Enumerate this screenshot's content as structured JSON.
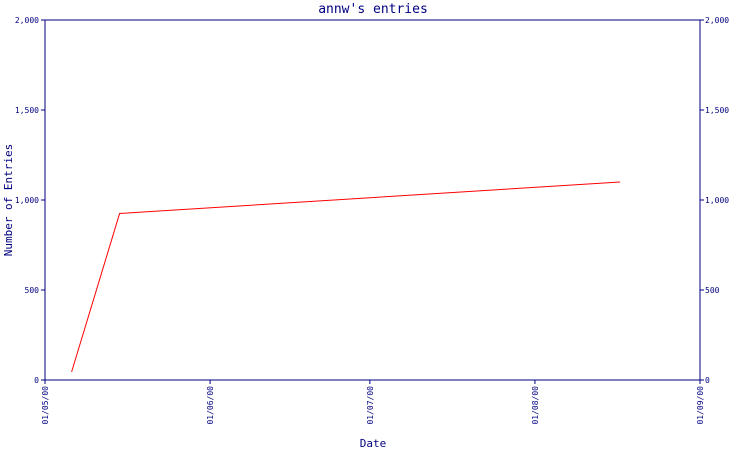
{
  "chart_data": {
    "type": "line",
    "title": "annw's entries",
    "xlabel": "Date",
    "ylabel": "Number of Entries",
    "ylim": [
      0,
      2000
    ],
    "xlim": [
      "2000-05-01",
      "2000-09-01"
    ],
    "y_ticks": [
      0,
      500,
      1000,
      1500,
      2000
    ],
    "y_tick_labels": [
      "0",
      "500",
      "1,000",
      "1,500",
      "2,000"
    ],
    "x_ticks": [
      "2000-05-01",
      "2000-06-01",
      "2000-07-01",
      "2000-08-01",
      "2000-09-01"
    ],
    "x_tick_labels": [
      "01/05/00",
      "01/06/00",
      "01/07/00",
      "01/08/00",
      "01/09/00"
    ],
    "grid": false,
    "right_axis": true,
    "series": [
      {
        "color": "#ff0000",
        "x": [
          "2000-05-06",
          "2000-05-15",
          "2000-08-17"
        ],
        "y": [
          45,
          925,
          1100
        ]
      }
    ]
  }
}
